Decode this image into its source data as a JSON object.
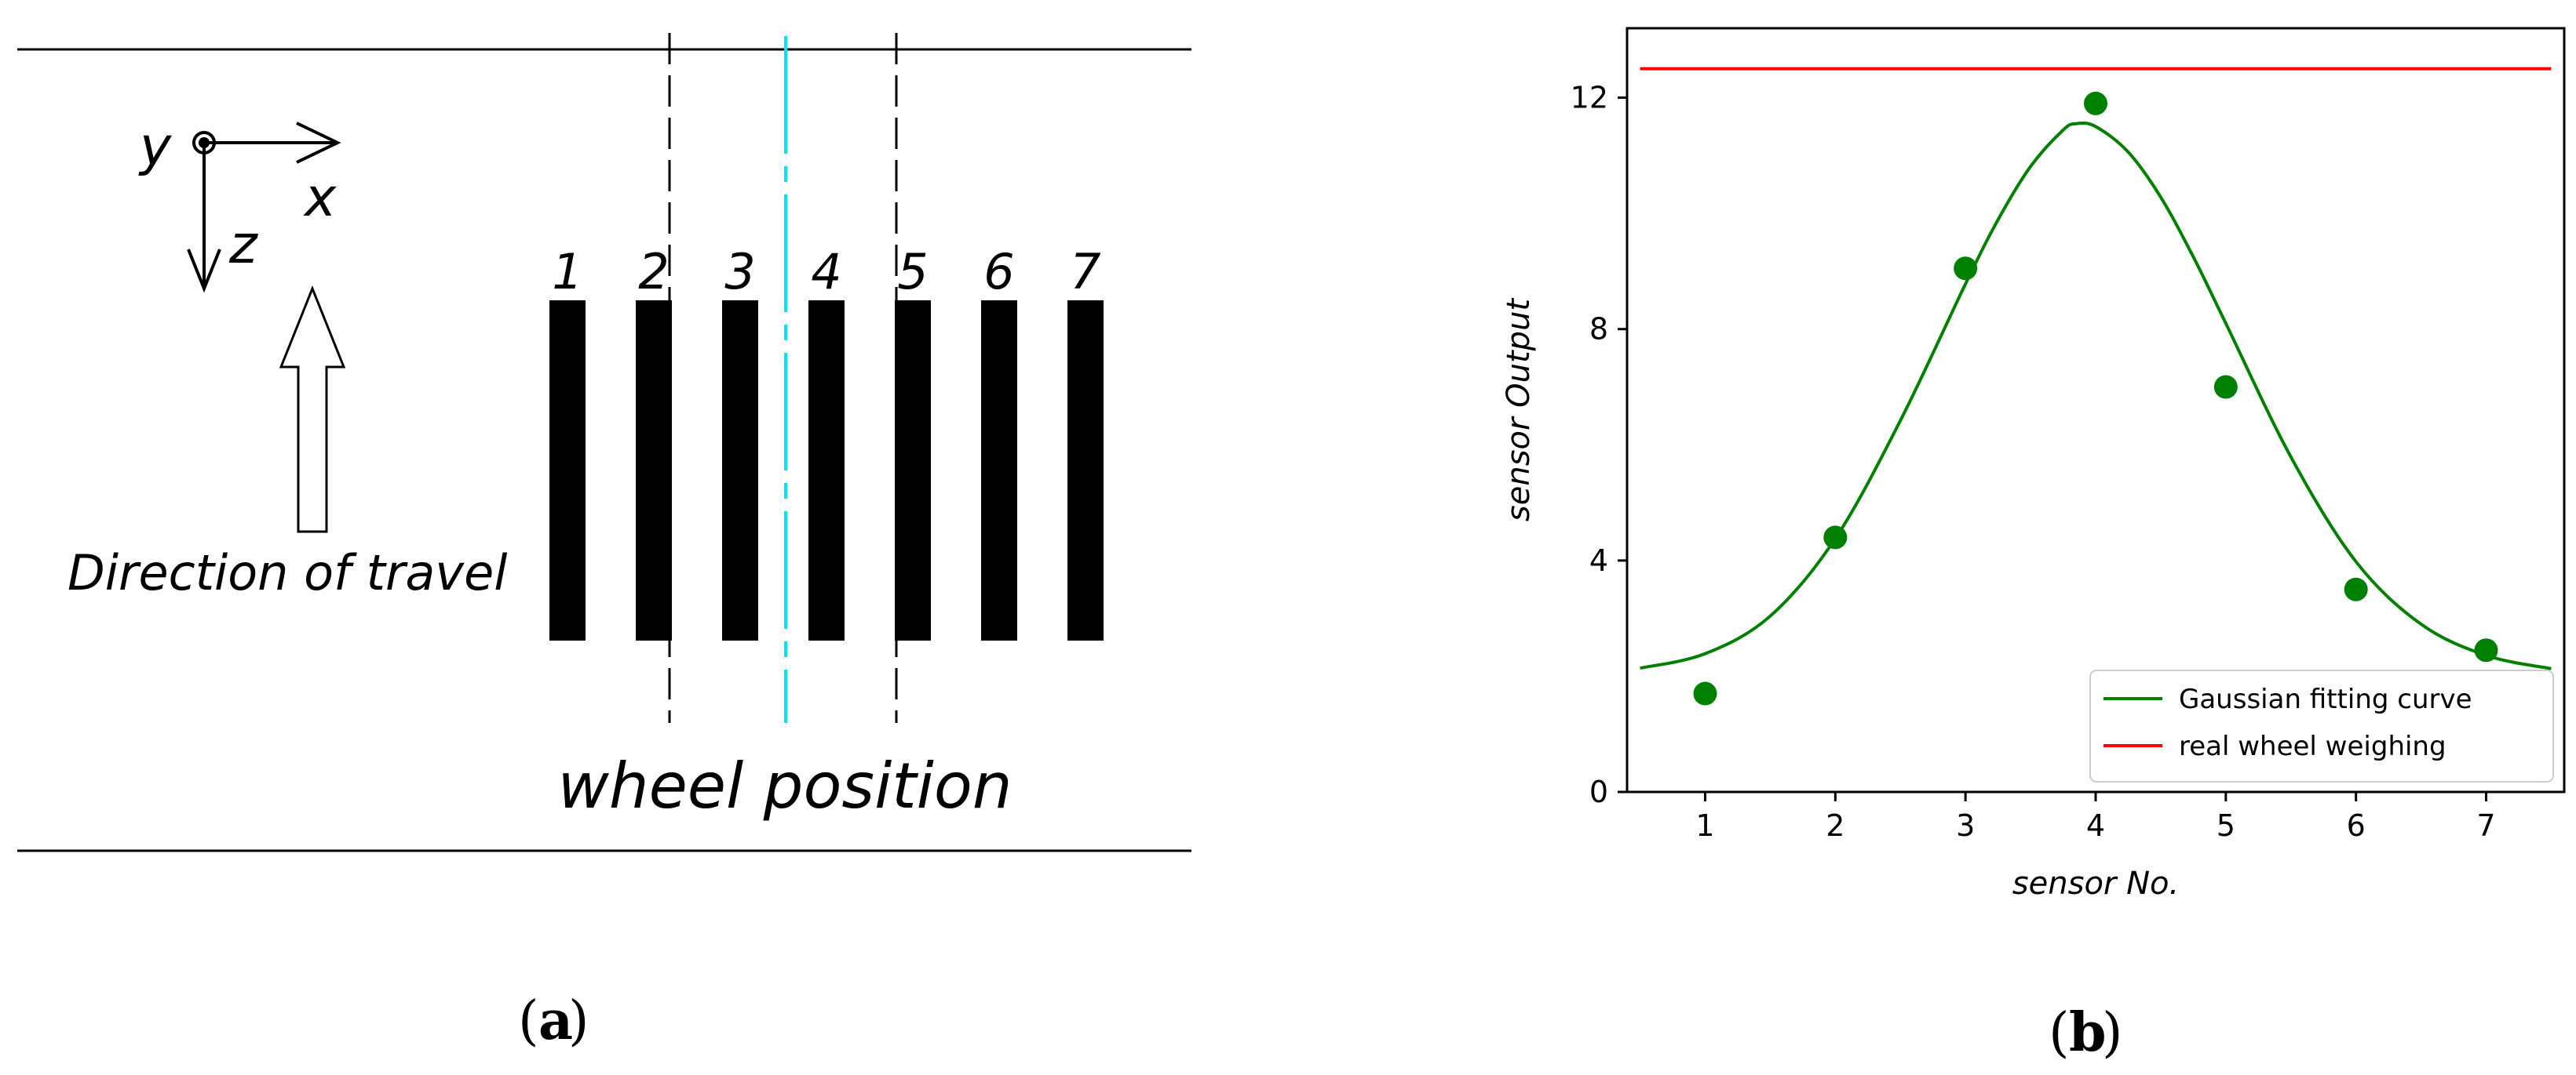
{
  "panel_a": {
    "label": "a",
    "axis_x": "x",
    "axis_y": "y",
    "axis_z": "z",
    "travel_label": "Direction of travel",
    "wheel_label": "wheel position",
    "sensor_labels": [
      "1",
      "2",
      "3",
      "4",
      "5",
      "6",
      "7"
    ],
    "colors": {
      "wheel_centerline": "#00e5ee",
      "strips": "#000000"
    }
  },
  "panel_b": {
    "label": "b"
  },
  "chart_data": {
    "type": "scatter",
    "title": "",
    "xlabel": "sensor No.",
    "ylabel": "sensor Output",
    "xlim": [
      0.4,
      7.6
    ],
    "ylim": [
      0,
      13.2
    ],
    "xticks": [
      1,
      2,
      3,
      4,
      5,
      6,
      7
    ],
    "yticks": [
      0,
      4,
      8,
      12
    ],
    "grid": false,
    "legend_position": "lower right",
    "points": {
      "color": "#008000",
      "x": [
        1,
        2,
        3,
        4,
        5,
        6,
        7
      ],
      "y": [
        1.7,
        4.4,
        9.05,
        11.9,
        7.0,
        3.5,
        2.45
      ]
    },
    "series": [
      {
        "name": "Gaussian fitting curve",
        "kind": "line",
        "color": "#008000",
        "x": [
          0.5,
          1.0,
          1.5,
          2.0,
          2.5,
          3.0,
          3.25,
          3.5,
          3.75,
          3.85,
          4.0,
          4.25,
          4.5,
          4.75,
          5.0,
          5.5,
          6.0,
          6.5,
          7.0,
          7.5
        ],
        "y": [
          2.14,
          2.39,
          3.04,
          4.38,
          6.42,
          8.78,
          9.89,
          10.81,
          11.44,
          11.55,
          11.5,
          11.06,
          10.28,
          9.25,
          8.1,
          5.79,
          3.98,
          2.9,
          2.36,
          2.13
        ]
      },
      {
        "name": "real wheel weighing",
        "kind": "line",
        "color": "#ff0000",
        "x": [
          0.5,
          7.5
        ],
        "y": [
          12.5,
          12.5
        ]
      }
    ]
  }
}
